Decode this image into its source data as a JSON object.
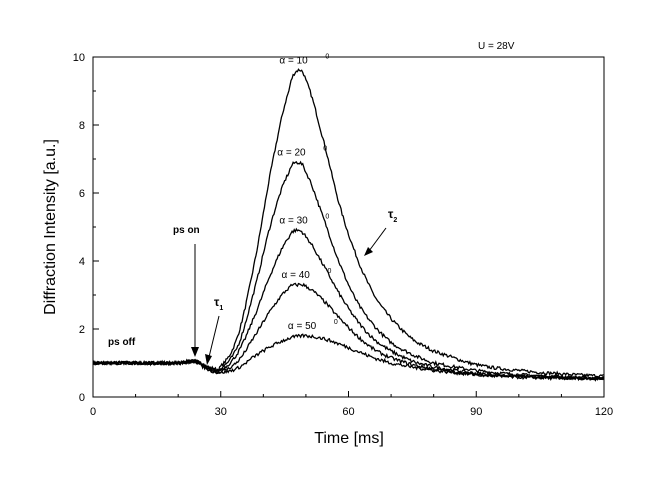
{
  "chart_data": {
    "type": "line",
    "title": "",
    "xlabel": "Time [ms]",
    "ylabel": "Diffraction Intensity [a.u.]",
    "xlim": [
      0,
      120
    ],
    "ylim": [
      0,
      10
    ],
    "x_ticks": [
      0,
      30,
      60,
      90,
      120
    ],
    "y_ticks": [
      0,
      2,
      4,
      6,
      8,
      10
    ],
    "grid": false,
    "legend": "none",
    "curve_color": "#000000",
    "condition_label": "U = 28V",
    "series": [
      {
        "label": "α = 10",
        "sup": "0",
        "peak_x": 48,
        "peak_y": 9.6,
        "x": [
          0,
          10,
          20,
          24,
          26,
          28,
          30,
          34,
          38,
          42,
          46,
          48,
          50,
          54,
          58,
          62,
          66,
          70,
          75,
          80,
          90,
          100,
          110,
          120
        ],
        "y": [
          1.0,
          1.0,
          1.0,
          1.05,
          0.95,
          0.85,
          0.9,
          1.8,
          4.0,
          6.8,
          9.0,
          9.6,
          9.3,
          7.6,
          5.6,
          4.1,
          3.0,
          2.3,
          1.7,
          1.35,
          0.95,
          0.78,
          0.68,
          0.62
        ]
      },
      {
        "label": "α = 20",
        "sup": "0",
        "peak_x": 47.5,
        "peak_y": 6.9,
        "x": [
          0,
          10,
          20,
          24,
          26,
          28,
          30,
          34,
          38,
          42,
          46,
          48,
          50,
          54,
          58,
          62,
          66,
          70,
          75,
          80,
          90,
          100,
          110,
          120
        ],
        "y": [
          1.0,
          1.0,
          1.0,
          1.05,
          0.93,
          0.82,
          0.85,
          1.5,
          3.2,
          5.2,
          6.6,
          6.9,
          6.6,
          5.3,
          3.9,
          2.8,
          2.1,
          1.6,
          1.25,
          1.0,
          0.78,
          0.66,
          0.6,
          0.56
        ]
      },
      {
        "label": "α = 30",
        "sup": "0",
        "peak_x": 48,
        "peak_y": 4.9,
        "x": [
          0,
          10,
          20,
          24,
          26,
          28,
          30,
          34,
          38,
          42,
          46,
          48,
          50,
          54,
          58,
          62,
          66,
          70,
          75,
          80,
          90,
          100,
          110,
          120
        ],
        "y": [
          1.0,
          1.0,
          1.0,
          1.05,
          0.92,
          0.8,
          0.8,
          1.3,
          2.4,
          3.7,
          4.7,
          4.9,
          4.7,
          3.9,
          3.0,
          2.25,
          1.7,
          1.35,
          1.05,
          0.88,
          0.7,
          0.62,
          0.57,
          0.55
        ]
      },
      {
        "label": "α = 40",
        "sup": "0",
        "peak_x": 48.5,
        "peak_y": 3.3,
        "x": [
          0,
          10,
          20,
          24,
          26,
          28,
          30,
          34,
          38,
          42,
          46,
          48,
          50,
          54,
          58,
          62,
          66,
          70,
          75,
          80,
          90,
          100,
          110,
          120
        ],
        "y": [
          1.0,
          1.0,
          1.0,
          1.05,
          0.9,
          0.78,
          0.75,
          1.05,
          1.8,
          2.6,
          3.2,
          3.3,
          3.25,
          2.85,
          2.3,
          1.8,
          1.4,
          1.15,
          0.95,
          0.82,
          0.67,
          0.6,
          0.56,
          0.54
        ]
      },
      {
        "label": "α = 50",
        "sup": "0",
        "peak_x": 50,
        "peak_y": 1.8,
        "x": [
          0,
          10,
          20,
          24,
          26,
          28,
          30,
          34,
          38,
          42,
          46,
          48,
          50,
          54,
          58,
          62,
          66,
          70,
          75,
          80,
          90,
          100,
          110,
          120
        ],
        "y": [
          1.0,
          1.0,
          1.0,
          1.05,
          0.88,
          0.76,
          0.72,
          0.85,
          1.2,
          1.5,
          1.72,
          1.78,
          1.8,
          1.72,
          1.55,
          1.35,
          1.15,
          1.0,
          0.88,
          0.78,
          0.65,
          0.58,
          0.55,
          0.53
        ]
      }
    ],
    "annotations": {
      "ps_off": "ps off",
      "ps_on": "ps on",
      "ps_on_time": 24,
      "tau1": "τ",
      "tau1_sub": "1",
      "tau2": "τ",
      "tau2_sub": "2"
    }
  }
}
